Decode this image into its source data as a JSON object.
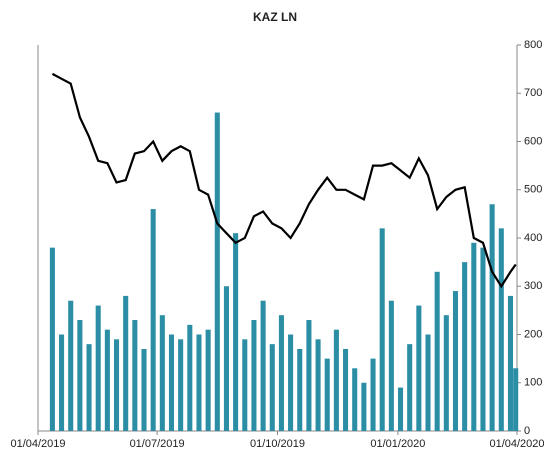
{
  "chart_data": {
    "type": "bar_line",
    "title": "KAZ LN",
    "x": [
      "2019-04-12",
      "2019-04-19",
      "2019-04-26",
      "2019-05-03",
      "2019-05-10",
      "2019-05-17",
      "2019-05-24",
      "2019-05-31",
      "2019-06-07",
      "2019-06-14",
      "2019-06-21",
      "2019-06-28",
      "2019-07-05",
      "2019-07-12",
      "2019-07-19",
      "2019-07-26",
      "2019-08-02",
      "2019-08-09",
      "2019-08-16",
      "2019-08-23",
      "2019-08-30",
      "2019-09-06",
      "2019-09-13",
      "2019-09-20",
      "2019-09-27",
      "2019-10-04",
      "2019-10-11",
      "2019-10-18",
      "2019-10-25",
      "2019-11-01",
      "2019-11-08",
      "2019-11-15",
      "2019-11-22",
      "2019-11-29",
      "2019-12-06",
      "2019-12-13",
      "2019-12-20",
      "2019-12-27",
      "2020-01-03",
      "2020-01-10",
      "2020-01-17",
      "2020-01-24",
      "2020-01-31",
      "2020-02-07",
      "2020-02-14",
      "2020-02-21",
      "2020-02-28",
      "2020-03-06",
      "2020-03-13",
      "2020-03-20",
      "2020-03-27",
      "2020-03-31"
    ],
    "series": [
      {
        "type": "bar",
        "color": "#2b8ea5",
        "values": [
          380,
          200,
          270,
          230,
          180,
          260,
          210,
          190,
          280,
          230,
          170,
          460,
          240,
          200,
          190,
          220,
          200,
          210,
          660,
          300,
          410,
          190,
          230,
          270,
          180,
          240,
          200,
          170,
          230,
          190,
          150,
          210,
          170,
          130,
          100,
          150,
          420,
          270,
          90,
          180,
          260,
          200,
          330,
          240,
          290,
          350,
          390,
          380,
          470,
          420,
          280,
          130
        ]
      },
      {
        "type": "line",
        "color": "#000000",
        "values": [
          740,
          730,
          720,
          650,
          610,
          560,
          555,
          515,
          520,
          575,
          580,
          600,
          560,
          580,
          590,
          580,
          500,
          490,
          430,
          410,
          390,
          400,
          445,
          455,
          430,
          420,
          400,
          430,
          470,
          500,
          525,
          500,
          500,
          490,
          480,
          550,
          550,
          555,
          540,
          525,
          565,
          530,
          460,
          485,
          500,
          505,
          400,
          390,
          330,
          300,
          330,
          345
        ]
      }
    ],
    "xlim": [
      "2019-04-01",
      "2020-04-01"
    ],
    "xticks": [
      {
        "value": "2019-04-01",
        "label": "01/04/2019"
      },
      {
        "value": "2019-07-01",
        "label": "01/07/2019"
      },
      {
        "value": "2019-10-01",
        "label": "01/10/2019"
      },
      {
        "value": "2020-01-01",
        "label": "01/01/2020"
      },
      {
        "value": "2020-04-01",
        "label": "01/04/2020"
      }
    ],
    "ylim": [
      0,
      800
    ],
    "yticks": [
      0,
      100,
      200,
      300,
      400,
      500,
      600,
      700,
      800
    ],
    "y_axis_position": "right"
  }
}
